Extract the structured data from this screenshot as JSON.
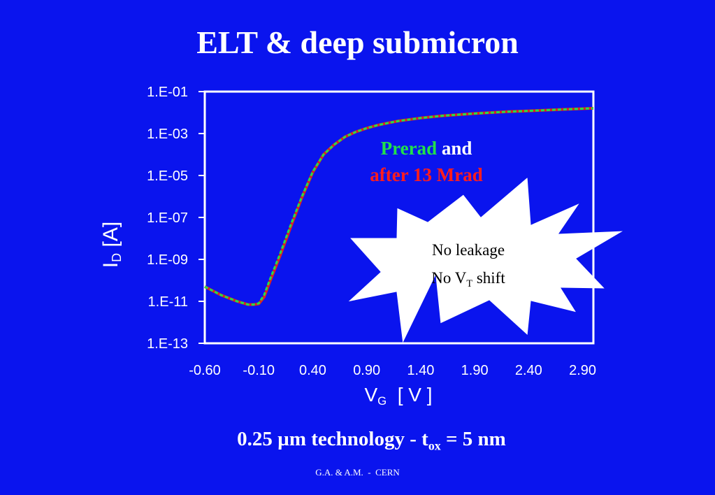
{
  "slide": {
    "title": "ELT & deep submicron",
    "ylabel_main": "I",
    "ylabel_sub": "D",
    "ylabel_unit": " [A]",
    "xlabel_main": "V",
    "xlabel_sub": "G",
    "xlabel_unit": "  [ V ]",
    "legend_preread": "Prerad",
    "legend_and": " and",
    "legend_after": "after 13 Mrad",
    "star_line1": "No leakage",
    "star_line2_pre": "No V",
    "star_line2_sub": "T",
    "star_line2_post": " shift",
    "tech_pre": "0.25 µm technology - t",
    "tech_sub": "ox",
    "tech_post": " = 5 nm",
    "credit": "G.A. & A.M.  -  CERN"
  },
  "colors": {
    "background": "#0a14ee",
    "plot_bg": "#0a14ee",
    "preread": "#22e04a",
    "after": "#e02020",
    "text": "#ffffff"
  },
  "chart_data": {
    "type": "line",
    "title": "",
    "xlabel": "VG [ V ]",
    "ylabel": "ID [A]",
    "y_scale": "log",
    "xlim": [
      -0.6,
      3.0
    ],
    "ylim": [
      1e-13,
      0.1
    ],
    "x_ticks": [
      -0.6,
      -0.1,
      0.4,
      0.9,
      1.4,
      1.9,
      2.4,
      2.9
    ],
    "x_tick_labels": [
      "-0.60",
      "-0.10",
      "0.40",
      "0.90",
      "1.40",
      "1.90",
      "2.40",
      "2.90"
    ],
    "y_ticks": [
      0.1,
      0.001,
      1e-05,
      1e-07,
      1e-09,
      1e-11,
      1e-13
    ],
    "y_tick_labels": [
      "1.E-01",
      "1.E-03",
      "1.E-05",
      "1.E-07",
      "1.E-09",
      "1.E-11",
      "1.E-13"
    ],
    "grid": false,
    "series": [
      {
        "name": "Prerad",
        "color": "#22e04a",
        "x": [
          -0.6,
          -0.45,
          -0.3,
          -0.2,
          -0.15,
          -0.1,
          -0.05,
          0.0,
          0.1,
          0.2,
          0.3,
          0.4,
          0.5,
          0.6,
          0.7,
          0.8,
          0.9,
          1.0,
          1.1,
          1.2,
          1.4,
          1.6,
          1.9,
          2.2,
          2.4,
          2.7,
          3.0
        ],
        "y": [
          5e-11,
          2e-11,
          1e-11,
          7e-12,
          7e-12,
          8e-12,
          2e-11,
          1e-10,
          2e-09,
          5e-08,
          1e-06,
          1.5e-05,
          0.0001,
          0.0003,
          0.0007,
          0.0012,
          0.0018,
          0.0025,
          0.0032,
          0.004,
          0.0055,
          0.007,
          0.009,
          0.011,
          0.012,
          0.014,
          0.016
        ]
      },
      {
        "name": "after 13 Mrad",
        "color": "#e02020",
        "x": [
          -0.6,
          -0.45,
          -0.3,
          -0.2,
          -0.15,
          -0.1,
          -0.05,
          0.0,
          0.1,
          0.2,
          0.3,
          0.4,
          0.5,
          0.6,
          0.7,
          0.8,
          0.9,
          1.0,
          1.1,
          1.2,
          1.4,
          1.6,
          1.9,
          2.2,
          2.4,
          2.7,
          3.0
        ],
        "y": [
          5e-11,
          2e-11,
          1e-11,
          7e-12,
          7e-12,
          7.5e-12,
          1.6e-11,
          8e-11,
          1.6e-09,
          4e-08,
          9e-07,
          1.4e-05,
          0.0001,
          0.0003,
          0.0007,
          0.0012,
          0.0018,
          0.0025,
          0.0032,
          0.004,
          0.0055,
          0.007,
          0.009,
          0.011,
          0.012,
          0.014,
          0.016
        ]
      }
    ]
  }
}
